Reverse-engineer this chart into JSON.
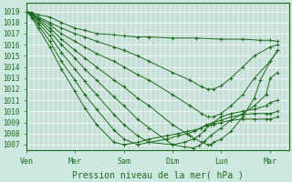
{
  "xlabel": "Pression niveau de la mer( hPa )",
  "bg_color": "#cde8e0",
  "line_color": "#1a6b1a",
  "marker": "+",
  "markersize": 3,
  "linewidth": 0.7,
  "ylim": [
    1006.5,
    1019.8
  ],
  "yticks": [
    1007,
    1008,
    1009,
    1010,
    1011,
    1012,
    1013,
    1014,
    1015,
    1016,
    1017,
    1018,
    1019
  ],
  "xtick_labels": [
    "Ven",
    "Mer",
    "Sam",
    "Dim",
    "Lun",
    "Mar"
  ],
  "xtick_positions": [
    0,
    0.83,
    1.67,
    2.5,
    3.33,
    4.17
  ],
  "xlim": [
    0,
    4.5
  ],
  "series_detailed": [
    {
      "x": [
        0,
        0.1,
        0.2,
        0.4,
        0.6,
        0.83,
        1.0,
        1.2,
        1.5,
        1.67,
        1.9,
        2.1,
        2.5,
        2.9,
        3.33,
        3.7,
        4.0,
        4.17,
        4.3
      ],
      "y": [
        1019.0,
        1018.9,
        1018.7,
        1018.5,
        1018.0,
        1017.5,
        1017.3,
        1017.0,
        1016.9,
        1016.8,
        1016.7,
        1016.7,
        1016.6,
        1016.6,
        1016.5,
        1016.5,
        1016.4,
        1016.4,
        1016.3
      ]
    },
    {
      "x": [
        0,
        0.1,
        0.2,
        0.4,
        0.6,
        0.83,
        1.0,
        1.2,
        1.5,
        1.67,
        1.9,
        2.1,
        2.5,
        2.8,
        3.0,
        3.1,
        3.2,
        3.33,
        3.5,
        3.7,
        3.9,
        4.17,
        4.3
      ],
      "y": [
        1019.0,
        1018.8,
        1018.5,
        1018.0,
        1017.5,
        1017.0,
        1016.7,
        1016.3,
        1015.8,
        1015.5,
        1015.0,
        1014.5,
        1013.5,
        1012.8,
        1012.2,
        1012.0,
        1012.0,
        1012.3,
        1013.0,
        1014.0,
        1015.0,
        1015.8,
        1016.0
      ]
    },
    {
      "x": [
        0,
        0.1,
        0.2,
        0.4,
        0.6,
        0.83,
        1.0,
        1.2,
        1.5,
        1.67,
        1.9,
        2.1,
        2.5,
        2.8,
        3.0,
        3.1,
        3.2,
        3.33,
        3.5,
        3.7,
        3.9,
        4.17,
        4.3
      ],
      "y": [
        1019.0,
        1018.8,
        1018.4,
        1017.8,
        1017.0,
        1016.3,
        1015.8,
        1015.2,
        1014.5,
        1014.0,
        1013.3,
        1012.8,
        1011.5,
        1010.5,
        1009.8,
        1009.5,
        1009.5,
        1009.8,
        1010.5,
        1011.5,
        1013.0,
        1014.5,
        1015.5
      ]
    },
    {
      "x": [
        0,
        0.1,
        0.2,
        0.4,
        0.6,
        0.83,
        1.0,
        1.2,
        1.5,
        1.67,
        1.9,
        2.1,
        2.5,
        2.8,
        3.0,
        3.1,
        3.15,
        3.2,
        3.33,
        3.5,
        3.7,
        3.9,
        4.0,
        4.17,
        4.3
      ],
      "y": [
        1019.0,
        1018.7,
        1018.3,
        1017.5,
        1016.5,
        1015.5,
        1014.8,
        1014.0,
        1012.8,
        1012.2,
        1011.2,
        1010.5,
        1008.8,
        1007.8,
        1007.2,
        1007.0,
        1007.0,
        1007.2,
        1007.5,
        1008.2,
        1009.5,
        1011.2,
        1012.8,
        1014.5,
        1015.5
      ]
    },
    {
      "x": [
        0,
        0.1,
        0.2,
        0.4,
        0.6,
        0.83,
        1.0,
        1.2,
        1.5,
        1.67,
        1.9,
        2.1,
        2.5,
        2.7,
        2.85,
        2.95,
        3.05,
        3.15,
        3.33,
        3.5,
        3.7,
        3.9,
        4.1,
        4.17,
        4.3
      ],
      "y": [
        1019.0,
        1018.7,
        1018.2,
        1017.2,
        1016.0,
        1014.8,
        1013.8,
        1012.8,
        1011.3,
        1010.5,
        1009.3,
        1008.5,
        1007.0,
        1006.8,
        1006.7,
        1006.9,
        1007.3,
        1007.8,
        1008.5,
        1009.2,
        1009.8,
        1010.5,
        1011.5,
        1013.0,
        1013.5
      ]
    },
    {
      "x": [
        0,
        0.1,
        0.2,
        0.4,
        0.6,
        0.83,
        1.0,
        1.2,
        1.5,
        1.67,
        1.9,
        2.1,
        2.5,
        2.7,
        2.85,
        2.95,
        3.05,
        3.15,
        3.33,
        3.5,
        3.7,
        3.9,
        4.1,
        4.17,
        4.3
      ],
      "y": [
        1019.0,
        1018.6,
        1018.0,
        1016.8,
        1015.3,
        1013.8,
        1012.7,
        1011.5,
        1009.7,
        1008.8,
        1007.8,
        1007.2,
        1007.0,
        1007.2,
        1007.5,
        1007.8,
        1008.3,
        1008.8,
        1009.5,
        1009.8,
        1010.0,
        1010.2,
        1010.5,
        1010.8,
        1011.0
      ]
    },
    {
      "x": [
        0,
        0.1,
        0.2,
        0.4,
        0.6,
        0.83,
        1.0,
        1.2,
        1.5,
        1.67,
        1.9,
        2.1,
        2.4,
        2.6,
        2.75,
        2.88,
        2.98,
        3.08,
        3.2,
        3.33,
        3.5,
        3.7,
        3.9,
        4.1,
        4.17,
        4.3
      ],
      "y": [
        1019.0,
        1018.5,
        1017.8,
        1016.3,
        1014.5,
        1012.8,
        1011.5,
        1010.2,
        1008.3,
        1007.5,
        1007.0,
        1007.2,
        1007.5,
        1007.8,
        1008.0,
        1008.2,
        1008.5,
        1008.8,
        1009.0,
        1009.2,
        1009.5,
        1009.7,
        1009.8,
        1009.8,
        1009.8,
        1010.0
      ]
    },
    {
      "x": [
        0,
        0.1,
        0.2,
        0.4,
        0.6,
        0.83,
        1.0,
        1.2,
        1.5,
        1.67,
        1.9,
        2.1,
        2.4,
        2.6,
        2.75,
        2.88,
        2.98,
        3.08,
        3.2,
        3.33,
        3.5,
        3.7,
        3.9,
        4.1,
        4.17,
        4.3
      ],
      "y": [
        1019.0,
        1018.4,
        1017.5,
        1015.8,
        1013.8,
        1011.8,
        1010.3,
        1008.8,
        1007.2,
        1007.0,
        1007.2,
        1007.5,
        1007.8,
        1008.0,
        1008.2,
        1008.3,
        1008.5,
        1008.7,
        1008.8,
        1009.0,
        1009.2,
        1009.3,
        1009.3,
        1009.3,
        1009.3,
        1009.5
      ]
    }
  ],
  "vgrid_color": "#c8a0a8",
  "hgrid_color": "#ffffff",
  "n_vgrid": 55,
  "ylabel_fontsize": 5.5,
  "xlabel_fontsize": 7,
  "xtick_fontsize": 6
}
